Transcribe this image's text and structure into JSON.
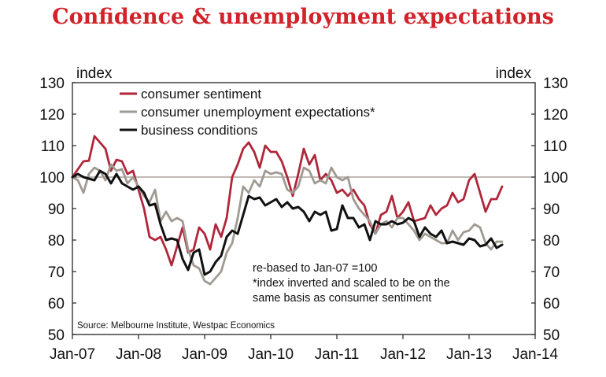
{
  "chart_data": {
    "type": "line",
    "title": "Confidence & unemployment expectations",
    "ylabel_left": "index",
    "ylabel_right": "index",
    "ylim": [
      50,
      130
    ],
    "yticks": [
      50,
      60,
      70,
      80,
      90,
      100,
      110,
      120,
      130
    ],
    "xlim": [
      "Jan-07",
      "Jan-14"
    ],
    "xticks": [
      "Jan-07",
      "Jan-08",
      "Jan-09",
      "Jan-10",
      "Jan-11",
      "Jan-12",
      "Jan-13",
      "Jan-14"
    ],
    "reference_line": 100,
    "legend_position": "top-left",
    "annotations": [
      "re-based to Jan-07 =100",
      "*index inverted and scaled to be on the",
      "same basis as consumer sentiment"
    ],
    "source": "Source: Melbourne Institute, Westpac Economics",
    "series": [
      {
        "name": "consumer sentiment",
        "color": "#b0263a",
        "points": [
          [
            "2007-01",
            100.0
          ],
          [
            "2007-02",
            102.5
          ],
          [
            "2007-03",
            105.0
          ],
          [
            "2007-04",
            105.2
          ],
          [
            "2007-05",
            113.0
          ],
          [
            "2007-06",
            111.0
          ],
          [
            "2007-07",
            109.0
          ],
          [
            "2007-08",
            102.0
          ],
          [
            "2007-09",
            105.5
          ],
          [
            "2007-10",
            105.0
          ],
          [
            "2007-11",
            101.0
          ],
          [
            "2007-12",
            102.0
          ],
          [
            "2008-01",
            96.0
          ],
          [
            "2008-02",
            90.0
          ],
          [
            "2008-03",
            81.0
          ],
          [
            "2008-04",
            80.0
          ],
          [
            "2008-05",
            81.0
          ],
          [
            "2008-06",
            77.0
          ],
          [
            "2008-07",
            72.0
          ],
          [
            "2008-08",
            78.0
          ],
          [
            "2008-09",
            84.0
          ],
          [
            "2008-10",
            76.0
          ],
          [
            "2008-11",
            77.0
          ],
          [
            "2008-12",
            84.0
          ],
          [
            "2009-01",
            82.0
          ],
          [
            "2009-02",
            77.0
          ],
          [
            "2009-03",
            85.0
          ],
          [
            "2009-04",
            81.0
          ],
          [
            "2009-05",
            87.0
          ],
          [
            "2009-06",
            100.0
          ],
          [
            "2009-07",
            104.0
          ],
          [
            "2009-08",
            109.0
          ],
          [
            "2009-09",
            111.0
          ],
          [
            "2009-10",
            108.0
          ],
          [
            "2009-11",
            103.0
          ],
          [
            "2009-12",
            110.0
          ],
          [
            "2010-01",
            108.0
          ],
          [
            "2010-02",
            108.0
          ],
          [
            "2010-03",
            105.0
          ],
          [
            "2010-04",
            100.0
          ],
          [
            "2010-05",
            94.0
          ],
          [
            "2010-06",
            101.0
          ],
          [
            "2010-07",
            109.0
          ],
          [
            "2010-08",
            104.0
          ],
          [
            "2010-09",
            107.0
          ],
          [
            "2010-10",
            99.0
          ],
          [
            "2010-11",
            101.0
          ],
          [
            "2010-12",
            99.0
          ],
          [
            "2011-01",
            95.0
          ],
          [
            "2011-02",
            96.0
          ],
          [
            "2011-03",
            94.0
          ],
          [
            "2011-04",
            96.0
          ],
          [
            "2011-05",
            93.0
          ],
          [
            "2011-06",
            91.0
          ],
          [
            "2011-07",
            85.0
          ],
          [
            "2011-08",
            82.0
          ],
          [
            "2011-09",
            88.0
          ],
          [
            "2011-10",
            89.0
          ],
          [
            "2011-11",
            94.0
          ],
          [
            "2011-12",
            87.0
          ],
          [
            "2012-01",
            89.0
          ],
          [
            "2012-02",
            92.0
          ],
          [
            "2012-03",
            86.0
          ],
          [
            "2012-04",
            86.5
          ],
          [
            "2012-05",
            87.0
          ],
          [
            "2012-06",
            91.0
          ],
          [
            "2012-07",
            88.0
          ],
          [
            "2012-08",
            90.0
          ],
          [
            "2012-09",
            91.0
          ],
          [
            "2012-10",
            95.0
          ],
          [
            "2012-11",
            92.0
          ],
          [
            "2012-12",
            93.0
          ],
          [
            "2013-01",
            99.0
          ],
          [
            "2013-02",
            101.0
          ],
          [
            "2013-03",
            95.0
          ],
          [
            "2013-04",
            89.0
          ],
          [
            "2013-05",
            93.0
          ],
          [
            "2013-06",
            93.0
          ],
          [
            "2013-07",
            97.0
          ]
        ]
      },
      {
        "name": "consumer unemployment expectations*",
        "color": "#a09a92",
        "points": [
          [
            "2007-01",
            100.0
          ],
          [
            "2007-02",
            99.0
          ],
          [
            "2007-03",
            95.0
          ],
          [
            "2007-04",
            101.0
          ],
          [
            "2007-05",
            103.0
          ],
          [
            "2007-06",
            102.0
          ],
          [
            "2007-07",
            99.0
          ],
          [
            "2007-08",
            104.0
          ],
          [
            "2007-09",
            102.0
          ],
          [
            "2007-10",
            102.5
          ],
          [
            "2007-11",
            98.0
          ],
          [
            "2007-12",
            100.0
          ],
          [
            "2008-01",
            97.0
          ],
          [
            "2008-02",
            94.0
          ],
          [
            "2008-03",
            92.0
          ],
          [
            "2008-04",
            96.0
          ],
          [
            "2008-05",
            86.0
          ],
          [
            "2008-06",
            89.0
          ],
          [
            "2008-07",
            86.0
          ],
          [
            "2008-08",
            87.0
          ],
          [
            "2008-09",
            86.0
          ],
          [
            "2008-10",
            77.0
          ],
          [
            "2008-11",
            72.0
          ],
          [
            "2008-12",
            71.0
          ],
          [
            "2009-01",
            67.0
          ],
          [
            "2009-02",
            66.0
          ],
          [
            "2009-03",
            68.0
          ],
          [
            "2009-04",
            70.0
          ],
          [
            "2009-05",
            76.0
          ],
          [
            "2009-06",
            79.0
          ],
          [
            "2009-07",
            87.0
          ],
          [
            "2009-08",
            97.0
          ],
          [
            "2009-09",
            95.0
          ],
          [
            "2009-10",
            99.0
          ],
          [
            "2009-11",
            97.0
          ],
          [
            "2009-12",
            102.0
          ],
          [
            "2010-01",
            101.0
          ],
          [
            "2010-02",
            101.5
          ],
          [
            "2010-03",
            101.0
          ],
          [
            "2010-04",
            96.0
          ],
          [
            "2010-05",
            95.0
          ],
          [
            "2010-06",
            97.0
          ],
          [
            "2010-07",
            103.0
          ],
          [
            "2010-08",
            102.0
          ],
          [
            "2010-09",
            98.0
          ],
          [
            "2010-10",
            99.0
          ],
          [
            "2010-11",
            98.0
          ],
          [
            "2010-12",
            103.0
          ],
          [
            "2011-01",
            100.0
          ],
          [
            "2011-02",
            99.0
          ],
          [
            "2011-03",
            100.0
          ],
          [
            "2011-04",
            93.0
          ],
          [
            "2011-05",
            90.0
          ],
          [
            "2011-06",
            88.0
          ],
          [
            "2011-07",
            86.0
          ],
          [
            "2011-08",
            82.0
          ],
          [
            "2011-09",
            85.0
          ],
          [
            "2011-10",
            86.0
          ],
          [
            "2011-11",
            84.0
          ],
          [
            "2011-12",
            87.0
          ],
          [
            "2012-01",
            87.0
          ],
          [
            "2012-02",
            85.0
          ],
          [
            "2012-03",
            83.0
          ],
          [
            "2012-04",
            80.0
          ],
          [
            "2012-05",
            82.0
          ],
          [
            "2012-06",
            81.0
          ],
          [
            "2012-07",
            80.0
          ],
          [
            "2012-08",
            79.0
          ],
          [
            "2012-09",
            79.0
          ],
          [
            "2012-10",
            83.0
          ],
          [
            "2012-11",
            80.0
          ],
          [
            "2012-12",
            82.5
          ],
          [
            "2013-01",
            83.0
          ],
          [
            "2013-02",
            85.0
          ],
          [
            "2013-03",
            84.0
          ],
          [
            "2013-04",
            79.0
          ],
          [
            "2013-05",
            77.0
          ],
          [
            "2013-06",
            79.5
          ],
          [
            "2013-07",
            79.5
          ]
        ]
      },
      {
        "name": "business conditions",
        "color": "#111111",
        "points": [
          [
            "2007-01",
            100.0
          ],
          [
            "2007-02",
            101.0
          ],
          [
            "2007-03",
            100.0
          ],
          [
            "2007-04",
            99.5
          ],
          [
            "2007-05",
            99.0
          ],
          [
            "2007-06",
            102.0
          ],
          [
            "2007-07",
            101.0
          ],
          [
            "2007-08",
            98.0
          ],
          [
            "2007-09",
            101.0
          ],
          [
            "2007-10",
            98.0
          ],
          [
            "2007-11",
            97.0
          ],
          [
            "2007-12",
            96.0
          ],
          [
            "2008-01",
            97.0
          ],
          [
            "2008-02",
            95.0
          ],
          [
            "2008-03",
            91.0
          ],
          [
            "2008-04",
            91.5
          ],
          [
            "2008-05",
            85.0
          ],
          [
            "2008-06",
            80.0
          ],
          [
            "2008-07",
            80.5
          ],
          [
            "2008-08",
            80.0
          ],
          [
            "2008-09",
            74.0
          ],
          [
            "2008-10",
            70.5
          ],
          [
            "2008-11",
            76.0
          ],
          [
            "2008-12",
            77.0
          ],
          [
            "2009-01",
            69.0
          ],
          [
            "2009-02",
            70.0
          ],
          [
            "2009-03",
            73.0
          ],
          [
            "2009-04",
            75.0
          ],
          [
            "2009-05",
            81.0
          ],
          [
            "2009-06",
            83.0
          ],
          [
            "2009-07",
            82.0
          ],
          [
            "2009-08",
            88.0
          ],
          [
            "2009-09",
            94.0
          ],
          [
            "2009-10",
            93.0
          ],
          [
            "2009-11",
            93.5
          ],
          [
            "2009-12",
            91.0
          ],
          [
            "2010-01",
            92.0
          ],
          [
            "2010-02",
            93.0
          ],
          [
            "2010-03",
            90.5
          ],
          [
            "2010-04",
            92.0
          ],
          [
            "2010-05",
            90.0
          ],
          [
            "2010-06",
            90.5
          ],
          [
            "2010-07",
            89.0
          ],
          [
            "2010-08",
            86.0
          ],
          [
            "2010-09",
            89.0
          ],
          [
            "2010-10",
            88.0
          ],
          [
            "2010-11",
            89.0
          ],
          [
            "2010-12",
            83.0
          ],
          [
            "2011-01",
            83.5
          ],
          [
            "2011-02",
            91.0
          ],
          [
            "2011-03",
            87.0
          ],
          [
            "2011-04",
            87.0
          ],
          [
            "2011-05",
            84.0
          ],
          [
            "2011-06",
            85.0
          ],
          [
            "2011-07",
            80.0
          ],
          [
            "2011-08",
            86.0
          ],
          [
            "2011-09",
            85.0
          ],
          [
            "2011-10",
            85.0
          ],
          [
            "2011-11",
            86.0
          ],
          [
            "2011-12",
            85.0
          ],
          [
            "2012-01",
            85.5
          ],
          [
            "2012-02",
            87.0
          ],
          [
            "2012-03",
            86.0
          ],
          [
            "2012-04",
            81.0
          ],
          [
            "2012-05",
            84.0
          ],
          [
            "2012-06",
            82.0
          ],
          [
            "2012-07",
            81.0
          ],
          [
            "2012-08",
            83.0
          ],
          [
            "2012-09",
            79.0
          ],
          [
            "2012-10",
            79.5
          ],
          [
            "2012-11",
            79.0
          ],
          [
            "2012-12",
            78.5
          ],
          [
            "2013-01",
            80.5
          ],
          [
            "2013-02",
            80.0
          ],
          [
            "2013-03",
            78.0
          ],
          [
            "2013-04",
            78.5
          ],
          [
            "2013-05",
            80.5
          ],
          [
            "2013-06",
            77.5
          ],
          [
            "2013-07",
            78.5
          ]
        ]
      }
    ]
  }
}
